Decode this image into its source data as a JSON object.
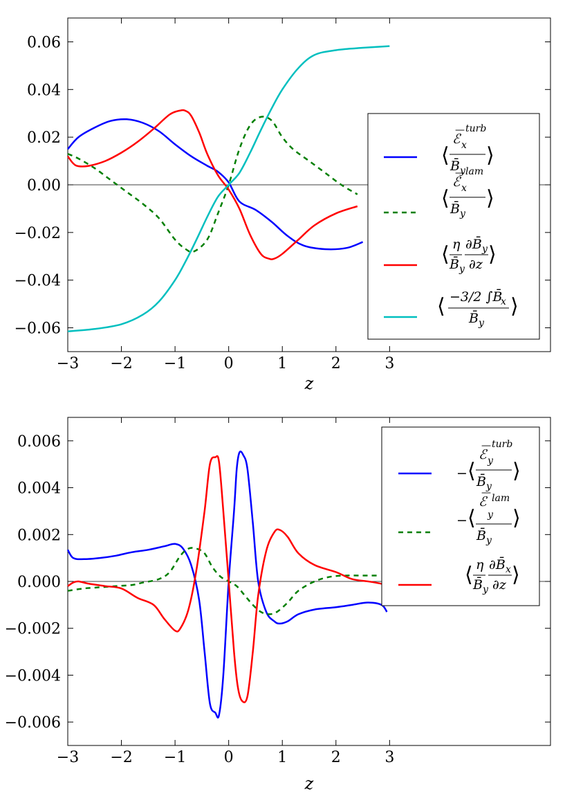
{
  "chart_data": [
    {
      "type": "line",
      "xlabel": "z",
      "ylabel": "",
      "xlim": [
        -3,
        6
      ],
      "ylim": [
        -0.07,
        0.07
      ],
      "xticks": [
        "−3",
        "−2",
        "−1",
        "0",
        "1",
        "2",
        "3"
      ],
      "xtick_values": [
        -3,
        -2,
        -1,
        0,
        1,
        2,
        3
      ],
      "yticks": [
        "−0.06",
        "−0.04",
        "−0.02",
        "0.00",
        "0.02",
        "0.04",
        "0.06"
      ],
      "ytick_values": [
        -0.06,
        -0.04,
        -0.02,
        0.0,
        0.02,
        0.04,
        0.06
      ],
      "zero_line": true,
      "legend_position": "center-right",
      "series": [
        {
          "name": "⟨Ē_x^turb / B̄_y⟩",
          "color": "#0000ff",
          "dash": "solid",
          "x": [
            -3,
            -2.8,
            -2.5,
            -2.2,
            -1.9,
            -1.6,
            -1.3,
            -1,
            -0.7,
            -0.4,
            -0.2,
            0,
            0.2,
            0.5,
            0.8,
            1.1,
            1.4,
            1.8,
            2.2,
            2.5
          ],
          "y": [
            0.015,
            0.02,
            0.024,
            0.0268,
            0.0275,
            0.026,
            0.0225,
            0.017,
            0.012,
            0.008,
            0.0055,
            0.001,
            -0.007,
            -0.0105,
            -0.0155,
            -0.0215,
            -0.0255,
            -0.027,
            -0.0265,
            -0.024
          ]
        },
        {
          "name": "⟨Ē_x^lam / B̄_y⟩",
          "color": "#007f00",
          "dash": "dashed",
          "x": [
            -3,
            -2.8,
            -2.5,
            -2.2,
            -1.9,
            -1.6,
            -1.3,
            -1.0,
            -0.8,
            -0.65,
            -0.4,
            -0.2,
            0,
            0.2,
            0.4,
            0.6,
            0.8,
            1.0,
            1.2,
            1.5,
            1.8,
            2.1,
            2.4
          ],
          "y": [
            0.013,
            0.011,
            0.007,
            0.002,
            -0.003,
            -0.008,
            -0.014,
            -0.023,
            -0.027,
            -0.028,
            -0.023,
            -0.012,
            0.0,
            0.015,
            0.025,
            0.0285,
            0.027,
            0.02,
            0.015,
            0.01,
            0.005,
            0.0,
            -0.004
          ]
        },
        {
          "name": "⟨η/B̄_y ∂B̄_y/∂z⟩",
          "color": "#ff0000",
          "dash": "solid",
          "x": [
            -3,
            -2.9,
            -2.8,
            -2.6,
            -2.3,
            -2.0,
            -1.7,
            -1.4,
            -1.1,
            -0.9,
            -0.8,
            -0.7,
            -0.55,
            -0.4,
            -0.2,
            0,
            0.2,
            0.4,
            0.6,
            0.75,
            0.85,
            1.0,
            1.3,
            1.6,
            2.0,
            2.4
          ],
          "y": [
            0.012,
            0.009,
            0.0078,
            0.008,
            0.01,
            0.0135,
            0.018,
            0.0235,
            0.0295,
            0.0312,
            0.031,
            0.029,
            0.022,
            0.013,
            0.004,
            -0.002,
            -0.01,
            -0.021,
            -0.029,
            -0.031,
            -0.031,
            -0.029,
            -0.023,
            -0.017,
            -0.012,
            -0.009
          ]
        },
        {
          "name": "⟨(−3/2 ∫B̄_x) / B̄_y⟩",
          "color": "#00bfbf",
          "dash": "solid",
          "x": [
            -3,
            -2.5,
            -2.0,
            -1.6,
            -1.3,
            -1.0,
            -0.8,
            -0.6,
            -0.4,
            -0.2,
            0,
            0.2,
            0.4,
            0.6,
            0.8,
            1.0,
            1.3,
            1.6,
            2.0,
            2.5,
            3.0
          ],
          "y": [
            -0.0615,
            -0.0605,
            -0.0585,
            -0.0545,
            -0.049,
            -0.04,
            -0.032,
            -0.023,
            -0.0135,
            -0.005,
            0.0,
            0.005,
            0.0135,
            0.023,
            0.032,
            0.04,
            0.049,
            0.0545,
            0.0565,
            0.0575,
            0.0582
          ]
        }
      ]
    },
    {
      "type": "line",
      "xlabel": "z",
      "ylabel": "",
      "xlim": [
        -3,
        6
      ],
      "ylim": [
        -0.007,
        0.007
      ],
      "xticks": [
        "−3",
        "−2",
        "−1",
        "0",
        "1",
        "2",
        "3"
      ],
      "xtick_values": [
        -3,
        -2,
        -1,
        0,
        1,
        2,
        3
      ],
      "yticks": [
        "−0.006",
        "−0.004",
        "−0.002",
        "0.000",
        "0.002",
        "0.004",
        "0.006"
      ],
      "ytick_values": [
        -0.006,
        -0.004,
        -0.002,
        0.0,
        0.002,
        0.004,
        0.006
      ],
      "zero_line": true,
      "legend_position": "upper-right",
      "series": [
        {
          "name": "−⟨Ē_y^turb / B̄_y⟩",
          "color": "#0000ff",
          "dash": "solid",
          "x": [
            -3,
            -2.9,
            -2.7,
            -2.4,
            -2.1,
            -1.8,
            -1.5,
            -1.2,
            -1.0,
            -0.85,
            -0.7,
            -0.55,
            -0.45,
            -0.35,
            -0.25,
            -0.18,
            -0.1,
            0,
            0.1,
            0.15,
            0.2,
            0.27,
            0.35,
            0.45,
            0.55,
            0.7,
            0.85,
            0.95,
            1.1,
            1.3,
            1.6,
            2.0,
            2.3,
            2.6,
            2.85,
            2.95
          ],
          "y": [
            0.00135,
            0.001,
            0.00095,
            0.001,
            0.0011,
            0.00125,
            0.00135,
            0.0015,
            0.0016,
            0.0014,
            0.0007,
            -0.0008,
            -0.003,
            -0.0052,
            -0.0056,
            -0.0057,
            -0.004,
            0.0,
            0.003,
            0.0048,
            0.0055,
            0.0054,
            0.0048,
            0.0025,
            0.0,
            -0.0013,
            -0.0017,
            -0.0018,
            -0.0017,
            -0.0014,
            -0.0012,
            -0.0011,
            -0.001,
            -0.0009,
            -0.001,
            -0.0013
          ]
        },
        {
          "name": "−⟨Ē_y^lam / B̄_y⟩",
          "color": "#007f00",
          "dash": "dashed",
          "x": [
            -3,
            -2.7,
            -2.4,
            -2.1,
            -1.8,
            -1.6,
            -1.3,
            -1.1,
            -0.9,
            -0.75,
            -0.6,
            -0.45,
            -0.3,
            -0.15,
            0,
            0.15,
            0.3,
            0.45,
            0.6,
            0.75,
            0.9,
            1.1,
            1.3,
            1.6,
            1.9,
            2.2,
            2.5,
            2.8
          ],
          "y": [
            -0.0004,
            -0.0003,
            -0.00025,
            -0.0002,
            -0.00015,
            -5e-05,
            0.0001,
            0.0004,
            0.0011,
            0.0014,
            0.0014,
            0.0012,
            0.0006,
            0.0002,
            0.0,
            -0.0002,
            -0.0006,
            -0.001,
            -0.0013,
            -0.0014,
            -0.0013,
            -0.0009,
            -0.0004,
            0.0,
            0.0002,
            0.00025,
            0.00025,
            0.00025
          ]
        },
        {
          "name": "⟨η/B̄_y ∂B̄_x/∂z⟩",
          "color": "#ff0000",
          "dash": "solid",
          "x": [
            -3,
            -2.9,
            -2.8,
            -2.6,
            -2.3,
            -2.0,
            -1.7,
            -1.4,
            -1.2,
            -1.0,
            -0.9,
            -0.75,
            -0.6,
            -0.45,
            -0.35,
            -0.25,
            -0.18,
            -0.1,
            0,
            0.1,
            0.17,
            0.25,
            0.35,
            0.45,
            0.55,
            0.7,
            0.85,
            0.95,
            1.1,
            1.3,
            1.6,
            2.0,
            2.3,
            2.6,
            2.85,
            2.95
          ],
          "y": [
            -0.0002,
            -5e-05,
            0.0,
            -0.0001,
            -0.0002,
            -0.0003,
            -0.0007,
            -0.001,
            -0.0016,
            -0.0021,
            -0.002,
            -0.0012,
            0.0005,
            0.003,
            0.005,
            0.0053,
            0.0051,
            0.003,
            0.0,
            -0.003,
            -0.0045,
            -0.0051,
            -0.0049,
            -0.003,
            -0.0006,
            0.0013,
            0.0021,
            0.0022,
            0.0019,
            0.0012,
            0.0007,
            0.0004,
            0.0001,
            0.0,
            -0.0001,
            -0.0002
          ]
        }
      ]
    }
  ]
}
